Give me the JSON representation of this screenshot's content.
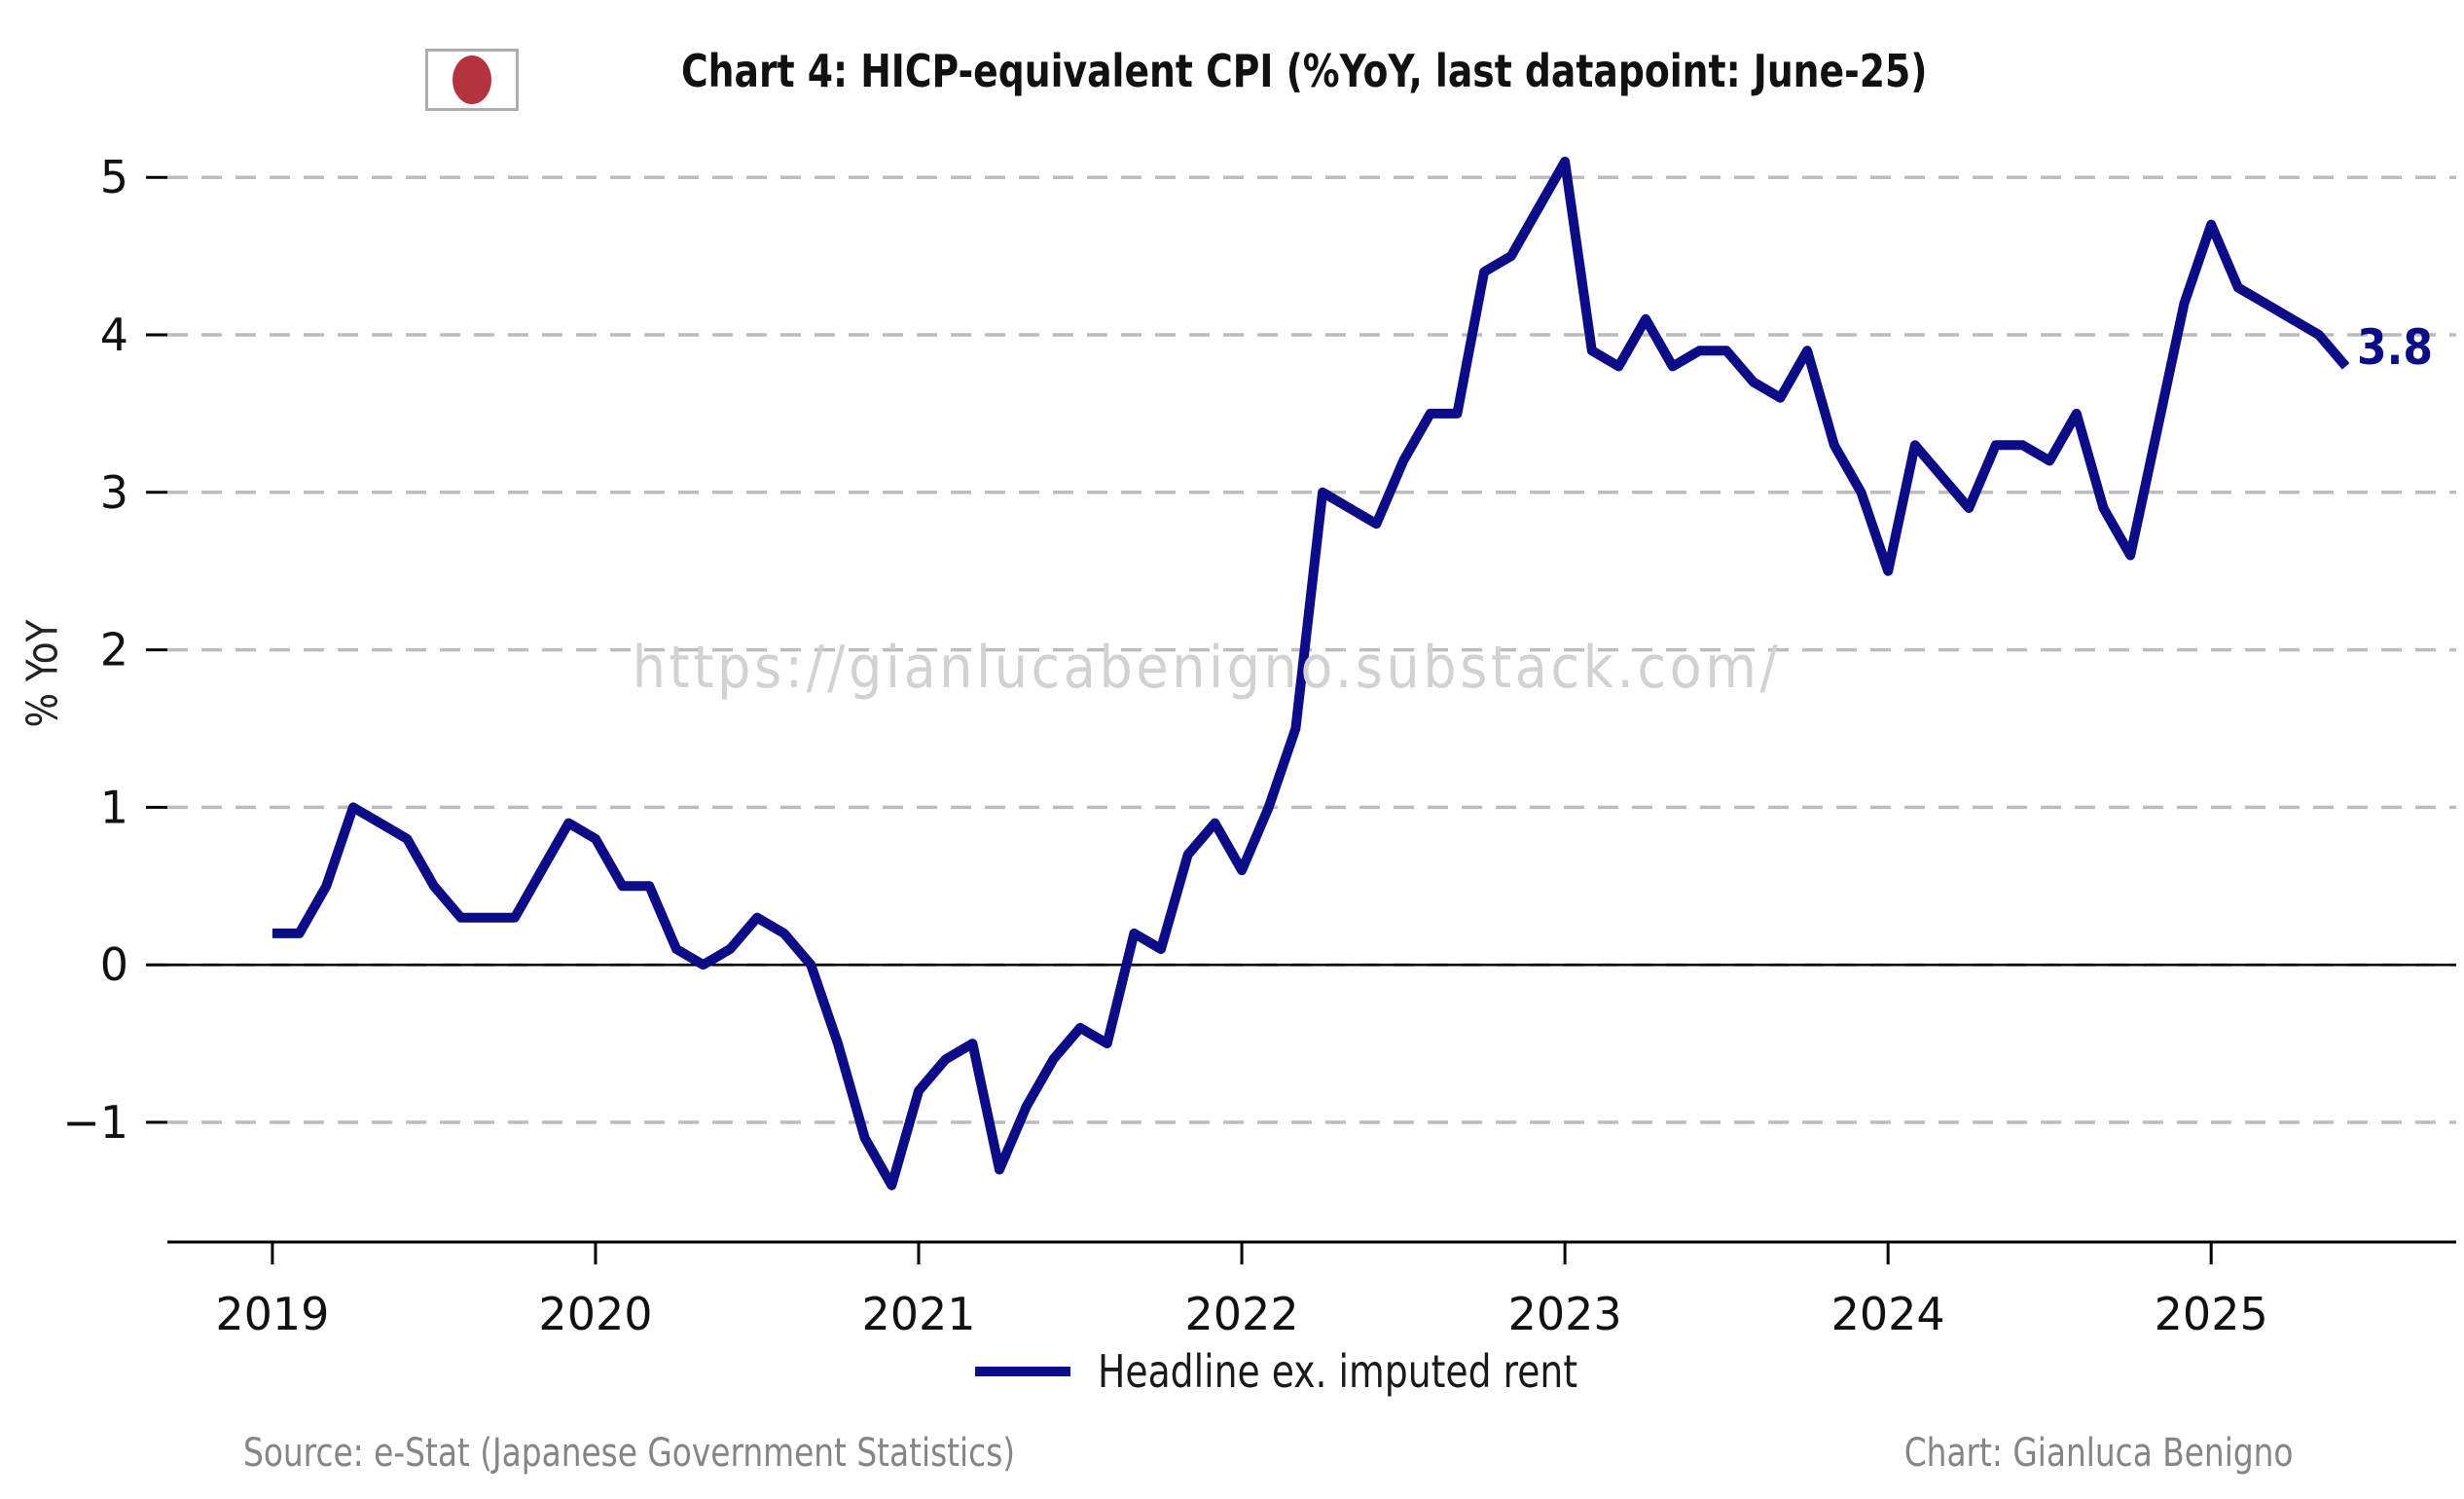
{
  "title": "Chart 4: HICP-equivalent CPI (%YoY, last datapoint: June-25)",
  "flag_icon": "japan-flag-icon",
  "ylabel": "% YoY",
  "watermark": "https://gianlucabenigno.substack.com/",
  "end_label": "3.8",
  "legend": {
    "label": "Headline ex. imputed rent",
    "swatch_color": "#0c0c87"
  },
  "footer": {
    "source": "Source: e-Stat (Japanese Government Statistics)",
    "credit": "Chart: Gianluca Benigno"
  },
  "colors": {
    "line": "#0c0c87",
    "grid": "#bcbcbc",
    "zero_line": "#000000",
    "axis": "#000000",
    "watermark": "#d2d2d2",
    "footer_text": "#858585",
    "flag_red": "#b3333f",
    "flag_border": "#adadad"
  },
  "chart_data": {
    "type": "line",
    "title": "Chart 4: HICP-equivalent CPI (%YoY, last datapoint: June-25)",
    "xlabel": "",
    "ylabel": "% YoY",
    "grid": "horizontal dashed",
    "legend_position": "bottom center",
    "last_value_annotation": "3.8",
    "ylim": [
      -1.76,
      5.44
    ],
    "xlim_month_index": [
      -3.9,
      81.1
    ],
    "y_ticks": [
      5,
      4,
      3,
      2,
      1,
      0,
      -1
    ],
    "y_tick_labels": [
      "5",
      "4",
      "3",
      "2",
      "1",
      "0",
      "−1"
    ],
    "x_tick_month_indices": [
      0,
      12,
      24,
      36,
      48,
      60,
      72
    ],
    "x_tick_labels": [
      "2019",
      "2020",
      "2021",
      "2022",
      "2023",
      "2024",
      "2025"
    ],
    "x": [
      "2019-01",
      "2019-02",
      "2019-03",
      "2019-04",
      "2019-05",
      "2019-06",
      "2019-07",
      "2019-08",
      "2019-09",
      "2019-10",
      "2019-11",
      "2019-12",
      "2020-01",
      "2020-02",
      "2020-03",
      "2020-04",
      "2020-05",
      "2020-06",
      "2020-07",
      "2020-08",
      "2020-09",
      "2020-10",
      "2020-11",
      "2020-12",
      "2021-01",
      "2021-02",
      "2021-03",
      "2021-04",
      "2021-05",
      "2021-06",
      "2021-07",
      "2021-08",
      "2021-09",
      "2021-10",
      "2021-11",
      "2021-12",
      "2022-01",
      "2022-02",
      "2022-03",
      "2022-04",
      "2022-05",
      "2022-06",
      "2022-07",
      "2022-08",
      "2022-09",
      "2022-10",
      "2022-11",
      "2022-12",
      "2023-01",
      "2023-02",
      "2023-03",
      "2023-04",
      "2023-05",
      "2023-06",
      "2023-07",
      "2023-08",
      "2023-09",
      "2023-10",
      "2023-11",
      "2023-12",
      "2024-01",
      "2024-02",
      "2024-03",
      "2024-04",
      "2024-05",
      "2024-06",
      "2024-07",
      "2024-08",
      "2024-09",
      "2024-10",
      "2024-11",
      "2024-12",
      "2025-01",
      "2025-02",
      "2025-03",
      "2025-04",
      "2025-05",
      "2025-06"
    ],
    "series": [
      {
        "name": "Headline ex. imputed rent",
        "color": "#0c0c87",
        "values": [
          0.2,
          0.2,
          0.5,
          1.0,
          0.9,
          0.8,
          0.5,
          0.3,
          0.3,
          0.3,
          0.6,
          0.9,
          0.8,
          0.5,
          0.5,
          0.1,
          0.0,
          0.1,
          0.3,
          0.2,
          0.0,
          -0.5,
          -1.1,
          -1.4,
          -0.8,
          -0.6,
          -0.5,
          -1.3,
          -0.9,
          -0.6,
          -0.4,
          -0.5,
          0.2,
          0.1,
          0.7,
          0.9,
          0.6,
          1.0,
          1.5,
          3.0,
          2.9,
          2.8,
          3.2,
          3.5,
          3.5,
          4.4,
          4.5,
          4.8,
          5.1,
          3.9,
          3.8,
          4.1,
          3.8,
          3.9,
          3.9,
          3.7,
          3.6,
          3.9,
          3.3,
          3.0,
          2.5,
          3.3,
          3.1,
          2.9,
          3.3,
          3.3,
          3.2,
          3.5,
          2.9,
          2.6,
          3.4,
          4.2,
          4.7,
          4.3,
          4.2,
          4.1,
          4.0,
          3.8
        ]
      }
    ]
  }
}
